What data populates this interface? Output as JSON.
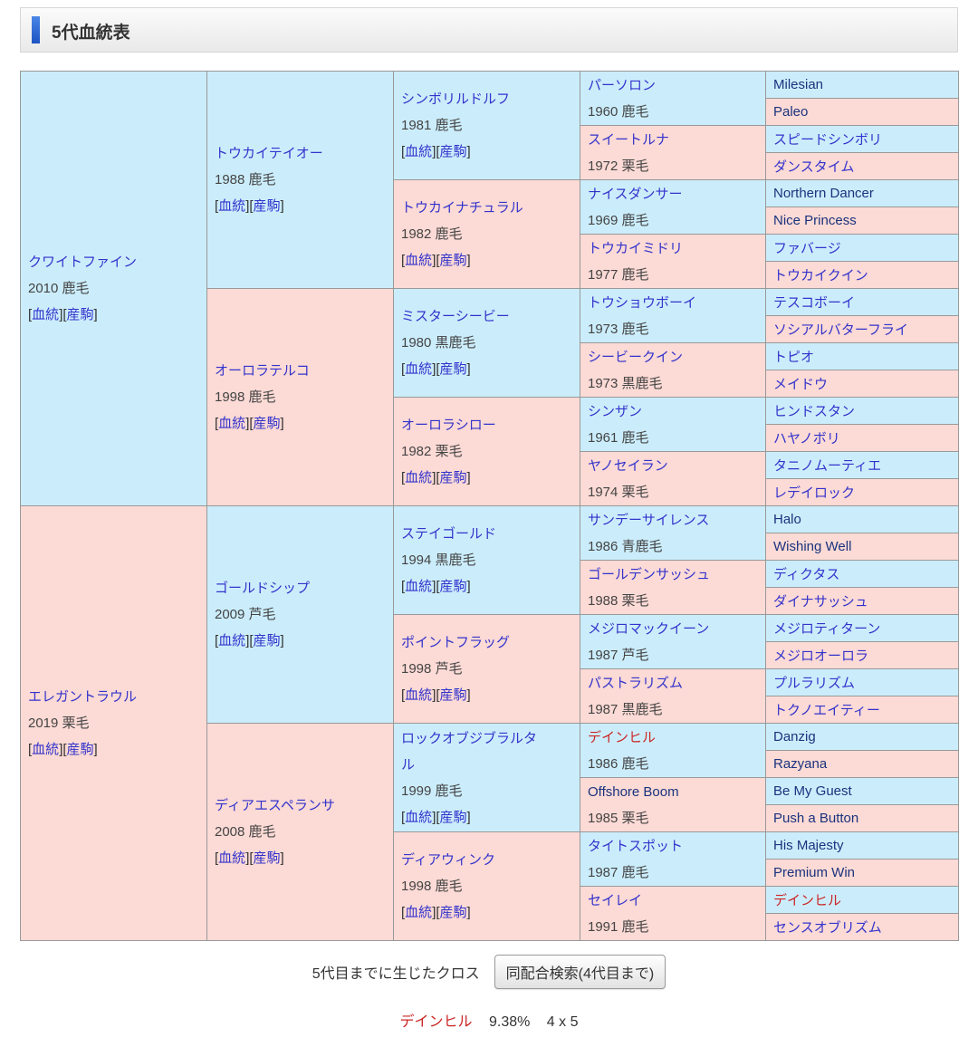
{
  "page_title": "5代血統表",
  "colors": {
    "male_bg": "#cbedfb",
    "female_bg": "#fcdad5",
    "border": "#999999",
    "link_ja": "#3333cc",
    "name_en": "#1a337e",
    "cross_red": "#cc2626",
    "info_text": "#444444",
    "accent_bar": "#2f6fd8"
  },
  "labels": {
    "blood": "血統",
    "offspring": "産駒",
    "bracket_open": "[",
    "bracket_close": "]"
  },
  "pedigree": {
    "gen1": [
      {
        "name": "クワイトファイン",
        "info": "2010 鹿毛",
        "style": "ja"
      },
      {
        "name": "エレガントラウル",
        "info": "2019 栗毛",
        "style": "ja"
      }
    ],
    "gen2": [
      {
        "name": "トウカイテイオー",
        "info": "1988 鹿毛",
        "style": "ja"
      },
      {
        "name": "オーロラテルコ",
        "info": "1998 鹿毛",
        "style": "ja"
      },
      {
        "name": "ゴールドシップ",
        "info": "2009 芦毛",
        "style": "ja"
      },
      {
        "name": "ディアエスペランサ",
        "info": "2008 鹿毛",
        "style": "ja"
      }
    ],
    "gen3": [
      {
        "name": "シンボリルドルフ",
        "info": "1981 鹿毛",
        "style": "ja"
      },
      {
        "name": "トウカイナチュラル",
        "info": "1982 鹿毛",
        "style": "ja"
      },
      {
        "name": "ミスターシービー",
        "info": "1980 黒鹿毛",
        "style": "ja"
      },
      {
        "name": "オーロラシロー",
        "info": "1982 栗毛",
        "style": "ja"
      },
      {
        "name": "ステイゴールド",
        "info": "1994 黒鹿毛",
        "style": "ja"
      },
      {
        "name": "ポイントフラッグ",
        "info": "1998 芦毛",
        "style": "ja"
      },
      {
        "name": "ロックオブジブラルタル",
        "info": "1999 鹿毛",
        "style": "ja"
      },
      {
        "name": "ディアウィンク",
        "info": "1998 鹿毛",
        "style": "ja"
      }
    ],
    "gen4": [
      {
        "name": "パーソロン",
        "info": "1960 鹿毛",
        "style": "ja"
      },
      {
        "name": "スイートルナ",
        "info": "1972 栗毛",
        "style": "ja"
      },
      {
        "name": "ナイスダンサー",
        "info": "1969 鹿毛",
        "style": "ja"
      },
      {
        "name": "トウカイミドリ",
        "info": "1977 鹿毛",
        "style": "ja"
      },
      {
        "name": "トウショウボーイ",
        "info": "1973 鹿毛",
        "style": "ja"
      },
      {
        "name": "シービークイン",
        "info": "1973 黒鹿毛",
        "style": "ja"
      },
      {
        "name": "シンザン",
        "info": "1961 鹿毛",
        "style": "ja"
      },
      {
        "name": "ヤノセイラン",
        "info": "1974 栗毛",
        "style": "ja"
      },
      {
        "name": "サンデーサイレンス",
        "info": "1986 青鹿毛",
        "style": "ja"
      },
      {
        "name": "ゴールデンサッシュ",
        "info": "1988 栗毛",
        "style": "ja"
      },
      {
        "name": "メジロマックイーン",
        "info": "1987 芦毛",
        "style": "ja"
      },
      {
        "name": "パストラリズム",
        "info": "1987 黒鹿毛",
        "style": "ja"
      },
      {
        "name": "デインヒル",
        "info": "1986 鹿毛",
        "style": "cross"
      },
      {
        "name": "Offshore Boom",
        "info": "1985 栗毛",
        "style": "en"
      },
      {
        "name": "タイトスポット",
        "info": "1987 鹿毛",
        "style": "ja"
      },
      {
        "name": "セイレイ",
        "info": "1991 鹿毛",
        "style": "ja"
      }
    ],
    "gen5": [
      {
        "name": "Milesian",
        "style": "en"
      },
      {
        "name": "Paleo",
        "style": "en"
      },
      {
        "name": "スピードシンボリ",
        "style": "ja"
      },
      {
        "name": "ダンスタイム",
        "style": "ja"
      },
      {
        "name": "Northern Dancer",
        "style": "en"
      },
      {
        "name": "Nice Princess",
        "style": "en"
      },
      {
        "name": "ファバージ",
        "style": "ja"
      },
      {
        "name": "トウカイクイン",
        "style": "ja"
      },
      {
        "name": "テスコボーイ",
        "style": "ja"
      },
      {
        "name": "ソシアルバターフライ",
        "style": "ja"
      },
      {
        "name": "トピオ",
        "style": "ja"
      },
      {
        "name": "メイドウ",
        "style": "ja"
      },
      {
        "name": "ヒンドスタン",
        "style": "ja"
      },
      {
        "name": "ハヤノボリ",
        "style": "ja"
      },
      {
        "name": "タニノムーティエ",
        "style": "ja"
      },
      {
        "name": "レデイロック",
        "style": "ja"
      },
      {
        "name": "Halo",
        "style": "en"
      },
      {
        "name": "Wishing Well",
        "style": "en"
      },
      {
        "name": "ディクタス",
        "style": "ja"
      },
      {
        "name": "ダイナサッシュ",
        "style": "ja"
      },
      {
        "name": "メジロティターン",
        "style": "ja"
      },
      {
        "name": "メジロオーロラ",
        "style": "ja"
      },
      {
        "name": "プルラリズム",
        "style": "ja"
      },
      {
        "name": "トクノエイティー",
        "style": "ja"
      },
      {
        "name": "Danzig",
        "style": "en"
      },
      {
        "name": "Razyana",
        "style": "en"
      },
      {
        "name": "Be My Guest",
        "style": "en"
      },
      {
        "name": "Push a Button",
        "style": "en"
      },
      {
        "name": "His Majesty",
        "style": "en"
      },
      {
        "name": "Premium Win",
        "style": "en"
      },
      {
        "name": "デインヒル",
        "style": "cross"
      },
      {
        "name": "センスオブリズム",
        "style": "ja"
      }
    ]
  },
  "cross_section": {
    "label": "5代目までに生じたクロス",
    "button": "同配合検索(4代目まで)",
    "result": {
      "name": "デインヒル",
      "percent": "9.38%",
      "pattern": "4 x 5"
    }
  }
}
